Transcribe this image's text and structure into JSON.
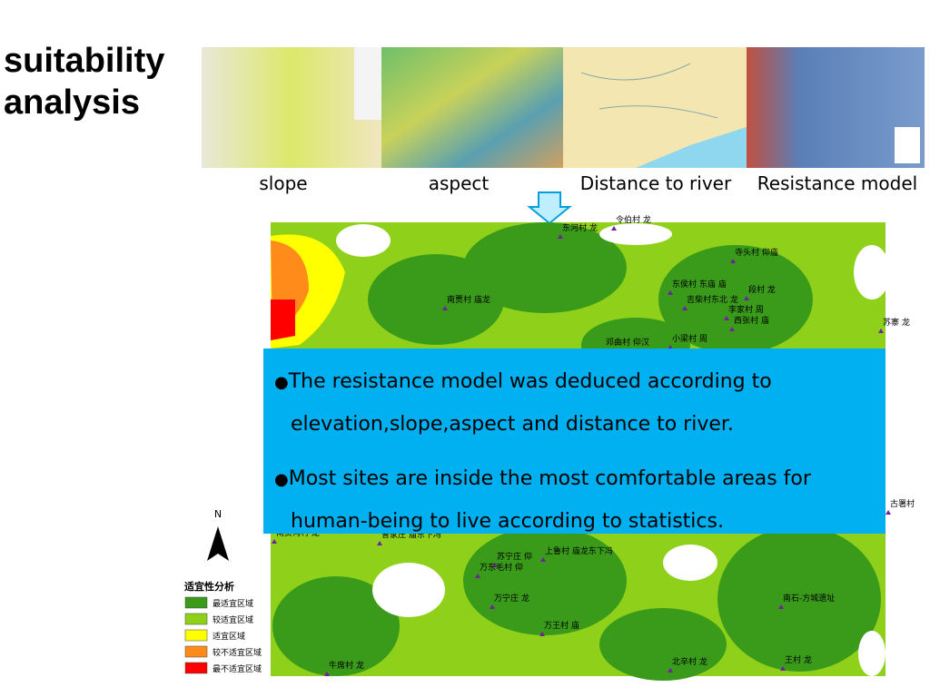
{
  "title": {
    "line1": "suitability",
    "line2": "analysis"
  },
  "thumbnails": {
    "captions": [
      "slope",
      "aspect",
      "Distance to river",
      "Resistance model"
    ]
  },
  "textbox": {
    "bullets": [
      "The resistance model was deduced according to elevation,slope,aspect and distance to river.",
      "Most sites are inside the most comfortable areas for human-being to live according to statistics."
    ]
  },
  "map": {
    "north": "N",
    "legend": {
      "title": "适宜性分析",
      "items": [
        "最适宜区域",
        "较适宜区域",
        "适宜区域",
        "较不适宜区域",
        "最不适宜区域"
      ]
    },
    "labels": [
      "东河村 龙",
      "令伯村 龙",
      "寺头村 仰庙",
      "南贾村 庙龙",
      "东侯村 东庙 庙",
      "段村 龙",
      "吉柴村东北 龙",
      "李家村 周",
      "西张村 庙",
      "苏寨 龙",
      "邓曲村 仰汉",
      "小梁村 周",
      "古署村",
      "南贾沟村 龙",
      "曹家庄 庙东下冯",
      "上鲁村 庙龙东下冯",
      "苏宁庄 仰",
      "万东毛村 仰",
      "万宁庄 龙",
      "南石-方城遗址",
      "万王村 庙",
      "北辛村 龙",
      "王村 龙",
      "牛席村 龙"
    ]
  }
}
